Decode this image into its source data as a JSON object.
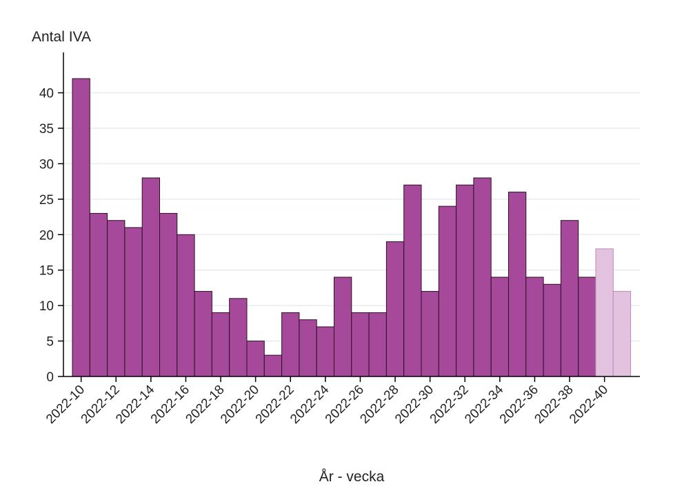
{
  "chart_data": {
    "type": "bar",
    "title": "",
    "ylabel": "Antal IVA",
    "xlabel": "År - vecka",
    "ylim": [
      0,
      44
    ],
    "yticks": [
      0,
      5,
      10,
      15,
      20,
      25,
      30,
      35,
      40
    ],
    "grid": true,
    "legend": "none",
    "colors": {
      "bar": "#a6499a",
      "bar_faded": "#e2c2de",
      "bar_edge": "#2a1026",
      "grid": "#e4ecf0",
      "axis": "#000000"
    },
    "categories": [
      "2022-10",
      "2022-11",
      "2022-12",
      "2022-13",
      "2022-14",
      "2022-15",
      "2022-16",
      "2022-17",
      "2022-18",
      "2022-19",
      "2022-20",
      "2022-21",
      "2022-22",
      "2022-23",
      "2022-24",
      "2022-25",
      "2022-26",
      "2022-27",
      "2022-28",
      "2022-29",
      "2022-30",
      "2022-31",
      "2022-32",
      "2022-33",
      "2022-34",
      "2022-35",
      "2022-36",
      "2022-37",
      "2022-38",
      "2022-39",
      "2022-40",
      "2022-41"
    ],
    "x_tick_labels": [
      "2022-10",
      "2022-12",
      "2022-14",
      "2022-16",
      "2022-18",
      "2022-20",
      "2022-22",
      "2022-24",
      "2022-26",
      "2022-28",
      "2022-30",
      "2022-32",
      "2022-34",
      "2022-36",
      "2022-38",
      "2022-40"
    ],
    "values": [
      42,
      23,
      22,
      21,
      28,
      23,
      20,
      12,
      9,
      11,
      5,
      3,
      9,
      8,
      7,
      14,
      9,
      9,
      19,
      27,
      12,
      24,
      27,
      28,
      14,
      26,
      14,
      13,
      22,
      14,
      18,
      12
    ],
    "preliminary": [
      false,
      false,
      false,
      false,
      false,
      false,
      false,
      false,
      false,
      false,
      false,
      false,
      false,
      false,
      false,
      false,
      false,
      false,
      false,
      false,
      false,
      false,
      false,
      false,
      false,
      false,
      false,
      false,
      false,
      false,
      true,
      true
    ]
  }
}
